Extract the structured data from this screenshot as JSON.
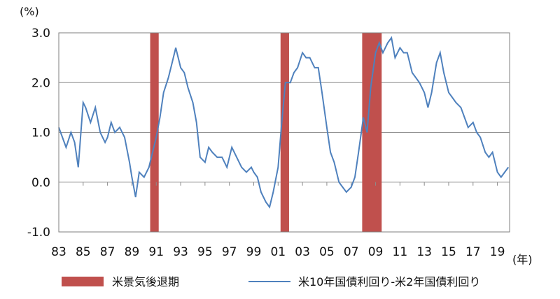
{
  "chart_data": {
    "type": "line",
    "y_unit": "(%)",
    "x_unit": "(年)",
    "ylim": [
      -1.0,
      3.0
    ],
    "xlim": [
      1983,
      2020
    ],
    "y_ticks": [
      {
        "value": 3.0,
        "label": "3.0"
      },
      {
        "value": 2.0,
        "label": "2.0"
      },
      {
        "value": 1.0,
        "label": "1.0"
      },
      {
        "value": 0.0,
        "label": "0.0"
      },
      {
        "value": -1.0,
        "label": "-1.0"
      }
    ],
    "x_ticks": [
      "83",
      "85",
      "87",
      "89",
      "91",
      "93",
      "95",
      "97",
      "99",
      "01",
      "03",
      "05",
      "07",
      "09",
      "11",
      "13",
      "15",
      "17",
      "19"
    ],
    "grid": true,
    "legend_position": "bottom",
    "recessions": {
      "name": "米景気後退期",
      "color": "#c0504d",
      "periods": [
        [
          1990.5,
          1991.2
        ],
        [
          2001.2,
          2001.9
        ],
        [
          2007.9,
          2009.5
        ]
      ]
    },
    "series": [
      {
        "name": "米10年国債利回り-米2年国債利回り",
        "color": "#4f81bd",
        "x": [
          1983.0,
          1983.3,
          1983.6,
          1984.0,
          1984.3,
          1984.6,
          1985.0,
          1985.2,
          1985.6,
          1986.0,
          1986.4,
          1986.8,
          1987.0,
          1987.3,
          1987.6,
          1988.0,
          1988.4,
          1988.8,
          1989.0,
          1989.3,
          1989.6,
          1990.0,
          1990.4,
          1990.7,
          1991.0,
          1991.3,
          1991.6,
          1992.0,
          1992.3,
          1992.6,
          1993.0,
          1993.3,
          1993.6,
          1994.0,
          1994.3,
          1994.6,
          1995.0,
          1995.3,
          1995.6,
          1996.0,
          1996.4,
          1996.8,
          1997.2,
          1997.6,
          1998.0,
          1998.4,
          1998.8,
          1999.0,
          1999.3,
          1999.6,
          2000.0,
          2000.3,
          2000.6,
          2001.0,
          2001.3,
          2001.6,
          2002.0,
          2002.3,
          2002.6,
          2003.0,
          2003.3,
          2003.6,
          2004.0,
          2004.3,
          2004.6,
          2005.0,
          2005.3,
          2005.6,
          2006.0,
          2006.3,
          2006.6,
          2007.0,
          2007.3,
          2007.6,
          2008.0,
          2008.3,
          2008.6,
          2009.0,
          2009.3,
          2009.6,
          2010.0,
          2010.3,
          2010.6,
          2011.0,
          2011.3,
          2011.6,
          2012.0,
          2012.3,
          2012.6,
          2013.0,
          2013.3,
          2013.6,
          2014.0,
          2014.3,
          2014.6,
          2015.0,
          2015.3,
          2015.6,
          2016.0,
          2016.3,
          2016.6,
          2017.0,
          2017.3,
          2017.6,
          2018.0,
          2018.3,
          2018.6,
          2019.0,
          2019.3,
          2019.6,
          2019.9
        ],
        "values": [
          1.1,
          0.9,
          0.7,
          1.0,
          0.8,
          0.3,
          1.6,
          1.5,
          1.2,
          1.5,
          1.0,
          0.8,
          0.9,
          1.2,
          1.0,
          1.1,
          0.9,
          0.4,
          0.1,
          -0.3,
          0.2,
          0.1,
          0.3,
          0.6,
          0.9,
          1.3,
          1.8,
          2.1,
          2.4,
          2.7,
          2.3,
          2.2,
          1.9,
          1.6,
          1.2,
          0.5,
          0.4,
          0.7,
          0.6,
          0.5,
          0.5,
          0.3,
          0.7,
          0.5,
          0.3,
          0.2,
          0.3,
          0.2,
          0.1,
          -0.2,
          -0.4,
          -0.5,
          -0.2,
          0.3,
          1.2,
          2.0,
          2.0,
          2.2,
          2.3,
          2.6,
          2.5,
          2.5,
          2.3,
          2.3,
          1.8,
          1.1,
          0.6,
          0.4,
          0.0,
          -0.1,
          -0.2,
          -0.1,
          0.1,
          0.6,
          1.3,
          1.0,
          1.9,
          2.6,
          2.8,
          2.6,
          2.8,
          2.9,
          2.5,
          2.7,
          2.6,
          2.6,
          2.2,
          2.1,
          2.0,
          1.8,
          1.5,
          1.8,
          2.4,
          2.6,
          2.2,
          1.8,
          1.7,
          1.6,
          1.5,
          1.3,
          1.1,
          1.2,
          1.0,
          0.9,
          0.6,
          0.5,
          0.6,
          0.2,
          0.1,
          0.2,
          0.3
        ]
      }
    ]
  }
}
